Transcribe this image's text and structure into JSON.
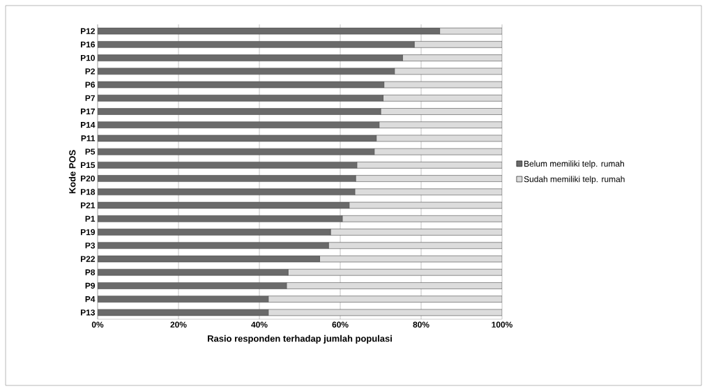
{
  "chart_data": {
    "type": "bar",
    "orientation": "horizontal",
    "stacked": true,
    "xlabel": "Rasio responden terhadap jumlah populasi",
    "ylabel": "Kode POS",
    "categories": [
      "P12",
      "P16",
      "P10",
      "P2",
      "P6",
      "P7",
      "P17",
      "P14",
      "P11",
      "P5",
      "P15",
      "P20",
      "P18",
      "P21",
      "P1",
      "P19",
      "P3",
      "P22",
      "P8",
      "P9",
      "P4",
      "P13"
    ],
    "series": [
      {
        "name": "Belum memiliki telp. rumah",
        "color": "#6a6a6a",
        "values": [
          84.6,
          78.3,
          75.4,
          73.4,
          70.8,
          70.6,
          70.0,
          69.6,
          68.9,
          68.4,
          64.1,
          63.8,
          63.6,
          62.2,
          60.5,
          57.6,
          57.1,
          54.9,
          47.1,
          46.7,
          42.2,
          42.2
        ]
      },
      {
        "name": "Sudah memiliki telp. rumah",
        "color": "#dcdcdc",
        "values": [
          15.4,
          21.7,
          24.6,
          26.6,
          29.2,
          29.4,
          30.0,
          30.4,
          31.1,
          31.6,
          35.9,
          36.2,
          36.4,
          37.8,
          39.5,
          42.4,
          42.9,
          45.1,
          52.9,
          53.3,
          57.8,
          57.8
        ]
      }
    ],
    "xlim": [
      0,
      100
    ],
    "xticks": [
      {
        "value": 0,
        "label": "0%"
      },
      {
        "value": 20,
        "label": "20%"
      },
      {
        "value": 40,
        "label": "40%"
      },
      {
        "value": 60,
        "label": "60%"
      },
      {
        "value": 80,
        "label": "80%"
      },
      {
        "value": 100,
        "label": "100%"
      }
    ],
    "grid": "x",
    "legend": "right"
  }
}
